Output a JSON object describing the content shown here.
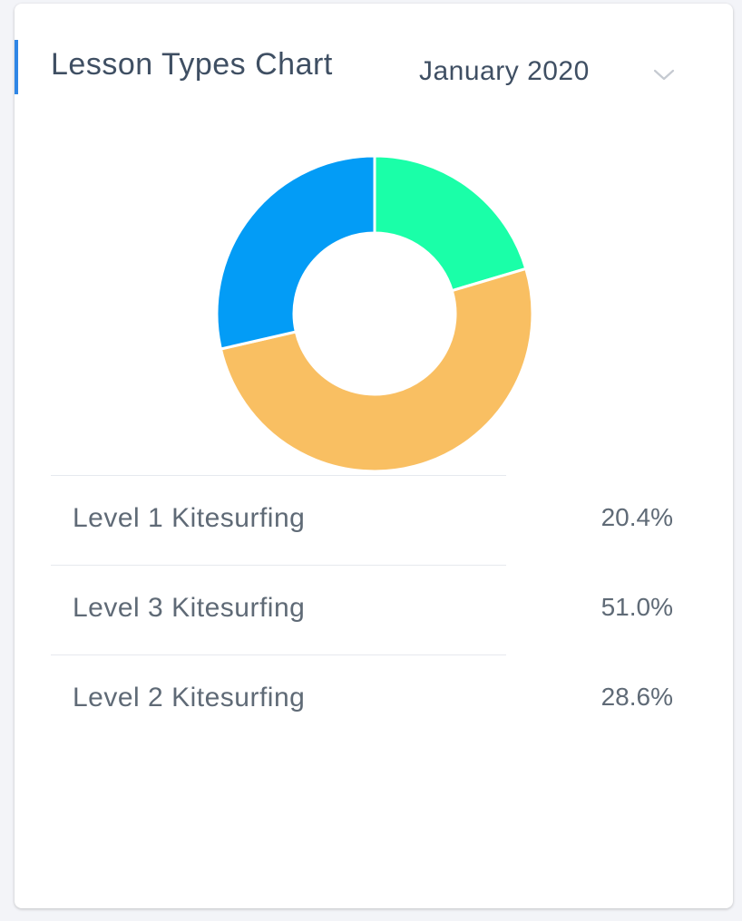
{
  "card": {
    "title": "Lesson Types Chart",
    "period": "January 2020"
  },
  "chart_data": {
    "type": "pie",
    "style": "donut",
    "title": "",
    "categories": [
      "Level 1 Kitesurfing",
      "Level 3 Kitesurfing",
      "Level 2 Kitesurfing"
    ],
    "values": [
      20.4,
      51.0,
      28.6
    ],
    "labels": [
      "20.4%",
      "51.0%",
      "28.6%"
    ],
    "colors": [
      "#1affa8",
      "#f9bf62",
      "#039cf6"
    ],
    "legend_position": "bottom"
  },
  "icons": {
    "dropdown": "chevron-down-icon"
  }
}
